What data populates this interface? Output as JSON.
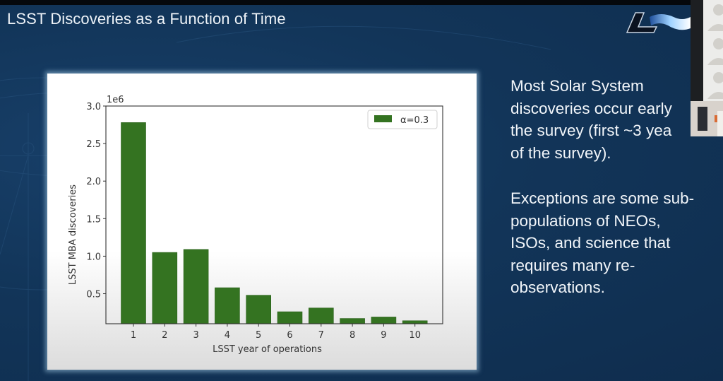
{
  "slide": {
    "title": "LSST Discoveries as a Function of Time",
    "logo_text": "LSST",
    "paragraphs": [
      "Most Solar System discoveries occur early the survey (first ~3 yea of the survey).",
      "Exceptions are some sub-populations of NEOs, ISOs, and science that requires many re-observations."
    ],
    "lines_p1": [
      "Most Solar System",
      "discoveries occur early",
      "the survey (first ~3 yea",
      "of the survey)."
    ],
    "lines_p2": [
      "Exceptions are some sub-",
      "populations of NEOs,",
      "ISOs, and science that",
      "requires many re-",
      "observations."
    ]
  },
  "video_overlay": {
    "participant_icons": [
      "person-icon",
      "person-icon",
      "person-icon"
    ],
    "webcam_thumbnail": "webcam-feed"
  },
  "colors": {
    "background": "#123559",
    "bar": "#347321",
    "bar_edge": "#2b621b",
    "text": "#f2f6fa"
  },
  "chart_data": {
    "type": "bar",
    "title": "",
    "xlabel": "LSST year of operations",
    "ylabel": "LSST MBA discoveries",
    "y_offset_label": "1e6",
    "categories": [
      "1",
      "2",
      "3",
      "4",
      "5",
      "6",
      "7",
      "8",
      "9",
      "10"
    ],
    "series": [
      {
        "name": "α=0.3",
        "values": [
          2780000,
          1050000,
          1090000,
          580000,
          480000,
          260000,
          310000,
          170000,
          190000,
          140000
        ]
      }
    ],
    "yticks": [
      "0.5",
      "1.0",
      "1.5",
      "2.0",
      "2.5",
      "3.0"
    ],
    "ylim": [
      100000,
      3000000
    ],
    "grid": false,
    "legend": {
      "position": "upper right",
      "entries": [
        "α=0.3"
      ]
    }
  }
}
